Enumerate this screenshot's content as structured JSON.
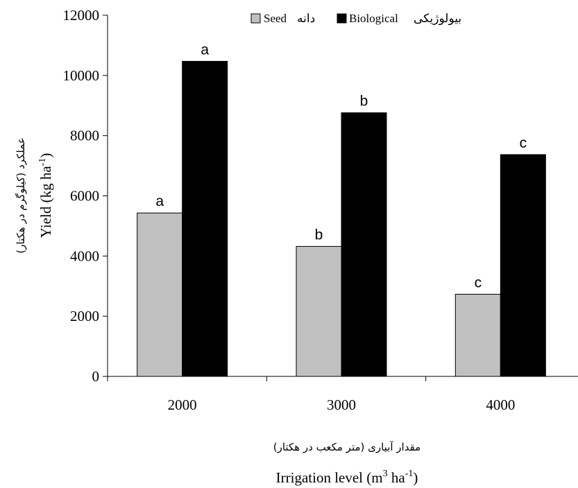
{
  "chart_data": {
    "type": "bar",
    "categories": [
      "2000",
      "3000",
      "4000"
    ],
    "series": [
      {
        "name": "Seed دانه",
        "values": [
          5430,
          4320,
          2730
        ],
        "color": "#c0c0c0",
        "significance": [
          "a",
          "b",
          "c"
        ]
      },
      {
        "name": "Biological بیولوژیکی",
        "values": [
          10470,
          8760,
          7370
        ],
        "color": "#000000",
        "significance": [
          "a",
          "b",
          "c"
        ]
      }
    ],
    "ylim": [
      0,
      12000
    ],
    "yticks": [
      "0",
      "2000",
      "4000",
      "6000",
      "8000",
      "10000",
      "12000"
    ],
    "ylabel": {
      "en_main": "Yield (kg ha",
      "en_sup": "-1",
      "en_close": ")",
      "fa": "عملکرد (کیلوگرم در هکتار)"
    },
    "xlabel": {
      "en_main": "Irrigation level (m",
      "en_sup1": "3",
      "en_mid": " ha",
      "en_sup2": "-1",
      "en_close": ")",
      "fa": "مقدار آبیاری (متر مکعب در هکتار)"
    },
    "legend": {
      "position": "top",
      "items": [
        {
          "label_en": "Seed",
          "label_fa": "دانه",
          "color": "#c0c0c0"
        },
        {
          "label_en": "Biological",
          "label_fa": "بیولوژیکی",
          "color": "#000000"
        }
      ]
    },
    "grid": false
  }
}
